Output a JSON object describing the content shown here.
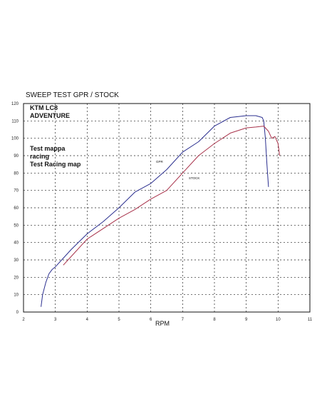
{
  "chart_data": {
    "type": "line",
    "title": "SWEEP TEST  GPR / STOCK",
    "annotations": {
      "model_line1": "KTM LC8",
      "model_line2": "ADVENTURE",
      "note_line1": "Test mappa",
      "note_line2": "racing",
      "note_line3": "Test Racing map"
    },
    "xlabel": "RPM",
    "ylabel": "",
    "xlim": [
      2,
      11
    ],
    "ylim": [
      0,
      120
    ],
    "x_ticks": [
      "2",
      "3",
      "4",
      "5",
      "6",
      "7",
      "8",
      "9",
      "10",
      "11"
    ],
    "y_ticks": [
      "0",
      "10",
      "20",
      "30",
      "40",
      "50",
      "60",
      "70",
      "80",
      "90",
      "100",
      "110",
      "120"
    ],
    "grid": true,
    "series": [
      {
        "name": "GPR",
        "color": "#2b2f8f",
        "x": [
          2.55,
          2.6,
          2.7,
          2.8,
          2.9,
          3.0,
          3.2,
          3.5,
          4.0,
          4.5,
          5.0,
          5.5,
          6.0,
          6.5,
          7.0,
          7.5,
          8.0,
          8.5,
          9.0,
          9.3,
          9.5,
          9.55,
          9.6,
          9.65,
          9.7
        ],
        "y": [
          3,
          10,
          17,
          22,
          24.5,
          26,
          30,
          36,
          45,
          52,
          60,
          69,
          74,
          82,
          92,
          98,
          107,
          112,
          113,
          113,
          112,
          110,
          100,
          85,
          72
        ]
      },
      {
        "name": "STOCK",
        "color": "#a8324a",
        "x": [
          3.25,
          3.5,
          4.0,
          4.5,
          5.0,
          5.5,
          6.0,
          6.5,
          7.0,
          7.5,
          8.0,
          8.5,
          9.0,
          9.3,
          9.55,
          9.7,
          9.8,
          9.9,
          10.0,
          10.05
        ],
        "y": [
          27,
          32,
          42,
          48,
          54,
          59,
          65,
          70,
          80,
          90,
          97,
          103,
          106,
          106.5,
          107,
          104,
          100,
          101,
          97,
          90
        ]
      }
    ]
  }
}
